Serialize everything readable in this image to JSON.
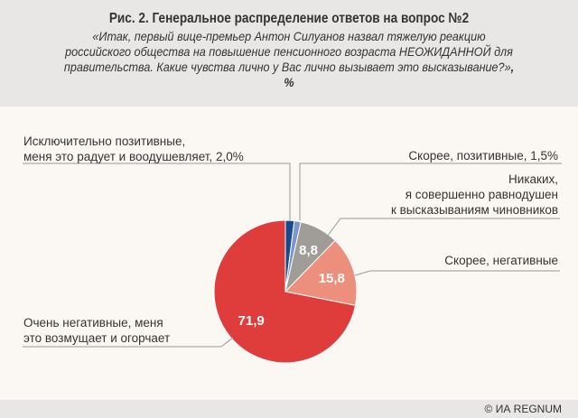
{
  "header": {
    "title": "Рис. 2. Генеральное распределение ответов на вопрос №2",
    "subtitle": "«Итак, первый вице-премьер Антон Силуанов назвал тяжелую реакцию российского общества на повышение пенсионного возраста НЕОЖИДАННОЙ для правительства. Какие чувства лично у Вас лично вызывает это высказывание?»",
    "unit": ", %"
  },
  "chart_data": {
    "type": "pie",
    "title": "Рис. 2. Генеральное распределение ответов на вопрос №2",
    "unit": "%",
    "slices": [
      {
        "label_lines": [
          "Исключительно позитивные,",
          "меня это радует и воодушевляет, 2,0%"
        ],
        "value": 2.0,
        "value_label": "",
        "color": "#1a4a8a"
      },
      {
        "label_lines": [
          "Скорее, позитивные, 1,5%"
        ],
        "value": 1.5,
        "value_label": "",
        "color": "#7b95cf"
      },
      {
        "label_lines": [
          "Никаких,",
          "я совершенно равнодушен",
          "к высказываниям чиновников"
        ],
        "value": 8.8,
        "value_label": "8,8",
        "color": "#a09d98"
      },
      {
        "label_lines": [
          "Скорее, негативные"
        ],
        "value": 15.8,
        "value_label": "15,8",
        "color": "#ec8f7c"
      },
      {
        "label_lines": [
          "Очень негативные, меня",
          "это возмущает и огорчает"
        ],
        "value": 71.9,
        "value_label": "71,9",
        "color": "#df3c3c"
      }
    ]
  },
  "footer": {
    "credit": "© ИА REGNUM"
  }
}
